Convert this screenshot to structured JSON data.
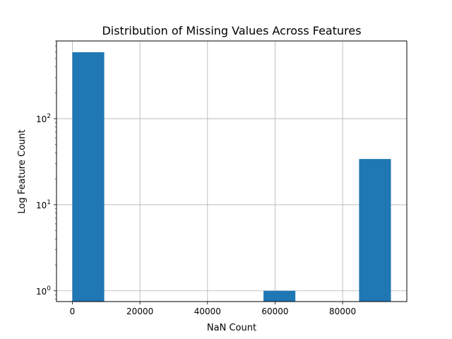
{
  "chart_data": {
    "type": "bar",
    "title": "Distribution of Missing Values Across Features",
    "xlabel": "NaN Count",
    "ylabel": "Log Feature Count",
    "y_scale": "log",
    "xlim": [
      -4700,
      99000
    ],
    "ylim": [
      0.75,
      800
    ],
    "grid": true,
    "bar_color": "#1f77b4",
    "bins": [
      {
        "start": 0,
        "end": 9430,
        "count": 592
      },
      {
        "start": 9430,
        "end": 18860,
        "count": 0
      },
      {
        "start": 18860,
        "end": 28290,
        "count": 0
      },
      {
        "start": 28290,
        "end": 37720,
        "count": 0
      },
      {
        "start": 37720,
        "end": 47150,
        "count": 0
      },
      {
        "start": 47150,
        "end": 56580,
        "count": 0
      },
      {
        "start": 56580,
        "end": 66010,
        "count": 1
      },
      {
        "start": 66010,
        "end": 75440,
        "count": 0
      },
      {
        "start": 75440,
        "end": 84870,
        "count": 0
      },
      {
        "start": 84870,
        "end": 94300,
        "count": 34
      }
    ],
    "x_ticks": [
      {
        "value": 0,
        "label": "0"
      },
      {
        "value": 20000,
        "label": "20000"
      },
      {
        "value": 40000,
        "label": "40000"
      },
      {
        "value": 60000,
        "label": "60000"
      },
      {
        "value": 80000,
        "label": "80000"
      }
    ],
    "y_ticks": [
      {
        "value": 1,
        "base": "10",
        "exp": "0"
      },
      {
        "value": 10,
        "base": "10",
        "exp": "1"
      },
      {
        "value": 100,
        "base": "10",
        "exp": "2"
      }
    ]
  }
}
